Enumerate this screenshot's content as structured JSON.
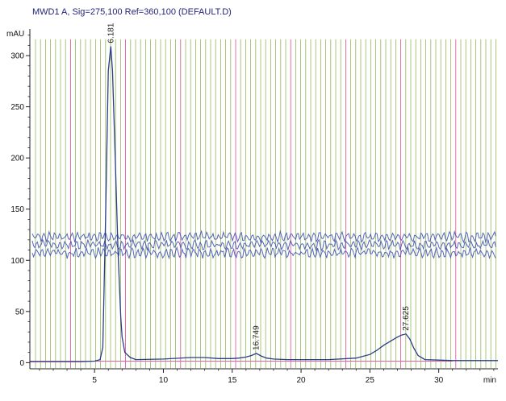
{
  "title": "MWD1 A, Sig=275,100 Ref=360,100 (DEFAULT.D)",
  "colors": {
    "signal": "#2b3d88",
    "event_lines": "#86b14a",
    "integration_marks": "#d43d7a",
    "noise_band": "#3a4bb0",
    "baseline": "#e05f9c",
    "axis": "#222222",
    "title": "#24247a"
  },
  "chart_data": {
    "type": "line",
    "title": "MWD1 A, Sig=275,100 Ref=360,100 (DEFAULT.D)",
    "xlabel": "min",
    "ylabel": "mAU",
    "xlim": [
      0.3,
      34.3
    ],
    "ylim": [
      -6,
      326
    ],
    "x_ticks": [
      5,
      10,
      15,
      20,
      25,
      30
    ],
    "y_ticks": [
      0,
      50,
      100,
      150,
      200,
      250,
      300
    ],
    "grid": false,
    "peaks": [
      {
        "label": "6.181",
        "rt": 6.181,
        "height": 309
      },
      {
        "label": "16.749",
        "rt": 16.749,
        "height": 9
      },
      {
        "label": "27.625",
        "rt": 27.625,
        "height": 28
      }
    ],
    "series": [
      {
        "x": [
          0.3,
          2,
          4,
          5,
          5.4,
          5.6,
          5.8,
          6.0,
          6.181,
          6.3,
          6.5,
          6.7,
          6.9,
          7.0,
          7.2,
          7.6,
          8,
          10,
          12,
          13,
          14,
          15,
          15.5,
          16,
          16.4,
          16.749,
          17.1,
          17.5,
          18,
          19,
          20,
          22,
          24,
          25,
          25.5,
          26,
          26.5,
          27,
          27.3,
          27.625,
          27.9,
          28.2,
          28.5,
          29,
          30,
          31,
          32,
          34.3
        ],
        "y": [
          1,
          1,
          1,
          1.5,
          3,
          15,
          140,
          285,
          309,
          285,
          200,
          110,
          45,
          25,
          10,
          5,
          3,
          3.5,
          5,
          5,
          4,
          4,
          4.5,
          5.5,
          7,
          9,
          6.5,
          4.5,
          3.5,
          3,
          3,
          3,
          4.5,
          8,
          12,
          17,
          21,
          25,
          27,
          28,
          23,
          14,
          7,
          3,
          2.5,
          2,
          2,
          2
        ]
      }
    ]
  }
}
